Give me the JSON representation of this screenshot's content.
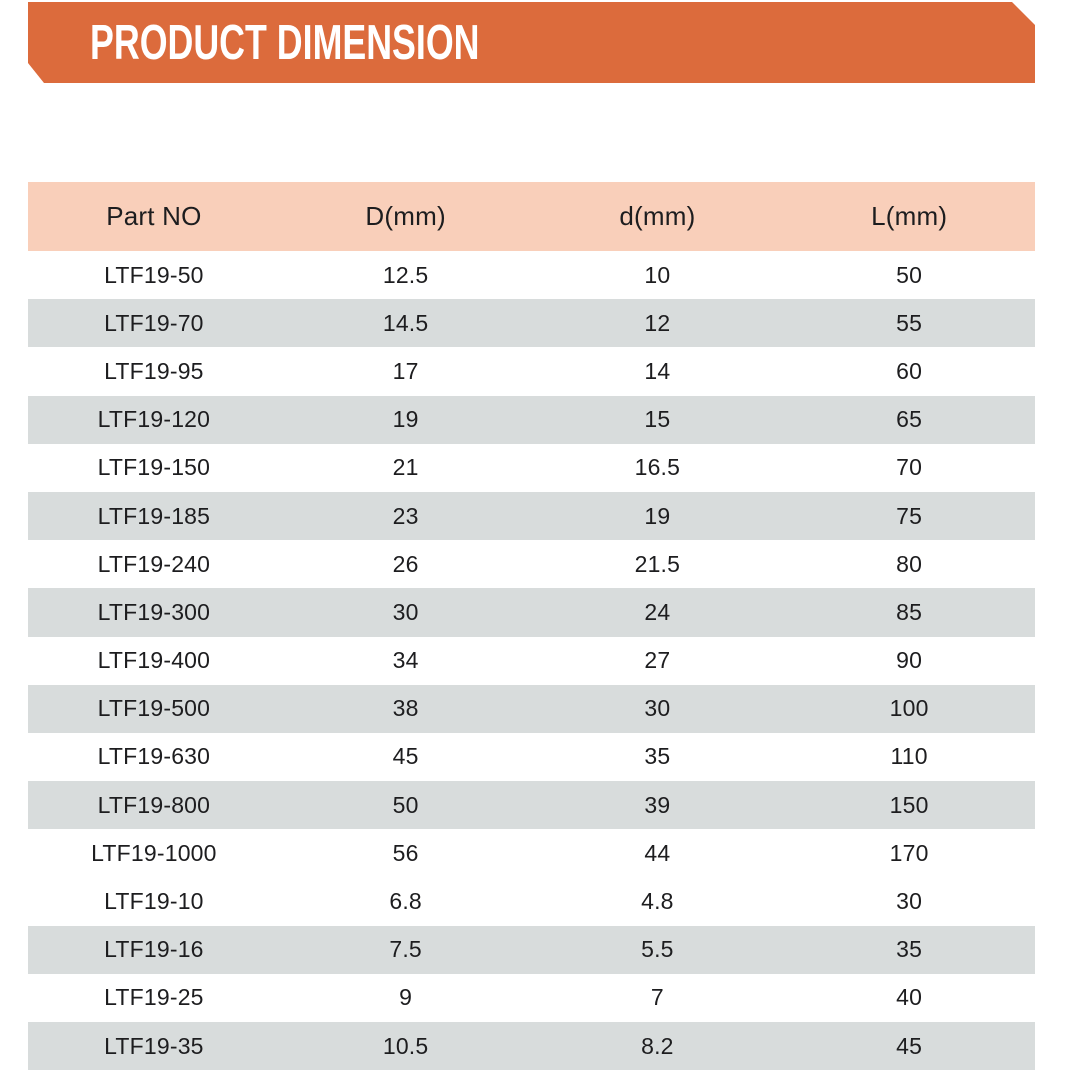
{
  "banner": {
    "title": "PRODUCT DIMENSION",
    "bg_color": "#dc6b3c",
    "text_color": "#ffffff"
  },
  "table": {
    "columns": [
      "Part NO",
      "D(mm)",
      "d(mm)",
      "L(mm)"
    ],
    "header_bg": "#f9cfba",
    "stripe_bg": "#d8dcdc",
    "row_bg": "#ffffff",
    "text_color": "#1d1d1f",
    "row_groups": [
      {
        "rows": [
          [
            "LTF19-50",
            "12.5",
            "10",
            "50"
          ],
          [
            "LTF19-70",
            "14.5",
            "12",
            "55"
          ],
          [
            "LTF19-95",
            "17",
            "14",
            "60"
          ],
          [
            "LTF19-120",
            "19",
            "15",
            "65"
          ],
          [
            "LTF19-150",
            "21",
            "16.5",
            "70"
          ],
          [
            "LTF19-185",
            "23",
            "19",
            "75"
          ],
          [
            "LTF19-240",
            "26",
            "21.5",
            "80"
          ],
          [
            "LTF19-300",
            "30",
            "24",
            "85"
          ],
          [
            "LTF19-400",
            "34",
            "27",
            "90"
          ],
          [
            "LTF19-500",
            "38",
            "30",
            "100"
          ],
          [
            "LTF19-630",
            "45",
            "35",
            "110"
          ],
          [
            "LTF19-800",
            "50",
            "39",
            "150"
          ],
          [
            "LTF19-1000",
            "56",
            "44",
            "170"
          ]
        ]
      },
      {
        "rows": [
          [
            "LTF19-10",
            "6.8",
            "4.8",
            "30"
          ],
          [
            "LTF19-16",
            "7.5",
            "5.5",
            "35"
          ],
          [
            "LTF19-25",
            "9",
            "7",
            "40"
          ],
          [
            "LTF19-35",
            "10.5",
            "8.2",
            "45"
          ]
        ]
      }
    ]
  }
}
